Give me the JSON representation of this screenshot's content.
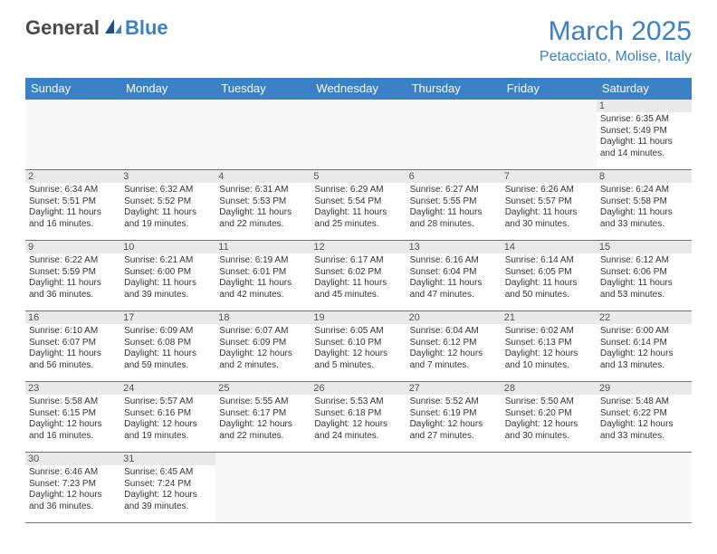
{
  "brand": {
    "part1": "General",
    "part2": "Blue"
  },
  "title": "March 2025",
  "location": "Petacciato, Molise, Italy",
  "colors": {
    "accent": "#3b7fc4",
    "headerText": "#ffffff",
    "bg": "#ffffff",
    "dayStripe": "#e9e9e9"
  },
  "dayHeaders": [
    "Sunday",
    "Monday",
    "Tuesday",
    "Wednesday",
    "Thursday",
    "Friday",
    "Saturday"
  ],
  "weeks": [
    [
      null,
      null,
      null,
      null,
      null,
      null,
      {
        "n": "1",
        "sr": "Sunrise: 6:35 AM",
        "ss": "Sunset: 5:49 PM",
        "dl": "Daylight: 11 hours and 14 minutes."
      }
    ],
    [
      {
        "n": "2",
        "sr": "Sunrise: 6:34 AM",
        "ss": "Sunset: 5:51 PM",
        "dl": "Daylight: 11 hours and 16 minutes."
      },
      {
        "n": "3",
        "sr": "Sunrise: 6:32 AM",
        "ss": "Sunset: 5:52 PM",
        "dl": "Daylight: 11 hours and 19 minutes."
      },
      {
        "n": "4",
        "sr": "Sunrise: 6:31 AM",
        "ss": "Sunset: 5:53 PM",
        "dl": "Daylight: 11 hours and 22 minutes."
      },
      {
        "n": "5",
        "sr": "Sunrise: 6:29 AM",
        "ss": "Sunset: 5:54 PM",
        "dl": "Daylight: 11 hours and 25 minutes."
      },
      {
        "n": "6",
        "sr": "Sunrise: 6:27 AM",
        "ss": "Sunset: 5:55 PM",
        "dl": "Daylight: 11 hours and 28 minutes."
      },
      {
        "n": "7",
        "sr": "Sunrise: 6:26 AM",
        "ss": "Sunset: 5:57 PM",
        "dl": "Daylight: 11 hours and 30 minutes."
      },
      {
        "n": "8",
        "sr": "Sunrise: 6:24 AM",
        "ss": "Sunset: 5:58 PM",
        "dl": "Daylight: 11 hours and 33 minutes."
      }
    ],
    [
      {
        "n": "9",
        "sr": "Sunrise: 6:22 AM",
        "ss": "Sunset: 5:59 PM",
        "dl": "Daylight: 11 hours and 36 minutes."
      },
      {
        "n": "10",
        "sr": "Sunrise: 6:21 AM",
        "ss": "Sunset: 6:00 PM",
        "dl": "Daylight: 11 hours and 39 minutes."
      },
      {
        "n": "11",
        "sr": "Sunrise: 6:19 AM",
        "ss": "Sunset: 6:01 PM",
        "dl": "Daylight: 11 hours and 42 minutes."
      },
      {
        "n": "12",
        "sr": "Sunrise: 6:17 AM",
        "ss": "Sunset: 6:02 PM",
        "dl": "Daylight: 11 hours and 45 minutes."
      },
      {
        "n": "13",
        "sr": "Sunrise: 6:16 AM",
        "ss": "Sunset: 6:04 PM",
        "dl": "Daylight: 11 hours and 47 minutes."
      },
      {
        "n": "14",
        "sr": "Sunrise: 6:14 AM",
        "ss": "Sunset: 6:05 PM",
        "dl": "Daylight: 11 hours and 50 minutes."
      },
      {
        "n": "15",
        "sr": "Sunrise: 6:12 AM",
        "ss": "Sunset: 6:06 PM",
        "dl": "Daylight: 11 hours and 53 minutes."
      }
    ],
    [
      {
        "n": "16",
        "sr": "Sunrise: 6:10 AM",
        "ss": "Sunset: 6:07 PM",
        "dl": "Daylight: 11 hours and 56 minutes."
      },
      {
        "n": "17",
        "sr": "Sunrise: 6:09 AM",
        "ss": "Sunset: 6:08 PM",
        "dl": "Daylight: 11 hours and 59 minutes."
      },
      {
        "n": "18",
        "sr": "Sunrise: 6:07 AM",
        "ss": "Sunset: 6:09 PM",
        "dl": "Daylight: 12 hours and 2 minutes."
      },
      {
        "n": "19",
        "sr": "Sunrise: 6:05 AM",
        "ss": "Sunset: 6:10 PM",
        "dl": "Daylight: 12 hours and 5 minutes."
      },
      {
        "n": "20",
        "sr": "Sunrise: 6:04 AM",
        "ss": "Sunset: 6:12 PM",
        "dl": "Daylight: 12 hours and 7 minutes."
      },
      {
        "n": "21",
        "sr": "Sunrise: 6:02 AM",
        "ss": "Sunset: 6:13 PM",
        "dl": "Daylight: 12 hours and 10 minutes."
      },
      {
        "n": "22",
        "sr": "Sunrise: 6:00 AM",
        "ss": "Sunset: 6:14 PM",
        "dl": "Daylight: 12 hours and 13 minutes."
      }
    ],
    [
      {
        "n": "23",
        "sr": "Sunrise: 5:58 AM",
        "ss": "Sunset: 6:15 PM",
        "dl": "Daylight: 12 hours and 16 minutes."
      },
      {
        "n": "24",
        "sr": "Sunrise: 5:57 AM",
        "ss": "Sunset: 6:16 PM",
        "dl": "Daylight: 12 hours and 19 minutes."
      },
      {
        "n": "25",
        "sr": "Sunrise: 5:55 AM",
        "ss": "Sunset: 6:17 PM",
        "dl": "Daylight: 12 hours and 22 minutes."
      },
      {
        "n": "26",
        "sr": "Sunrise: 5:53 AM",
        "ss": "Sunset: 6:18 PM",
        "dl": "Daylight: 12 hours and 24 minutes."
      },
      {
        "n": "27",
        "sr": "Sunrise: 5:52 AM",
        "ss": "Sunset: 6:19 PM",
        "dl": "Daylight: 12 hours and 27 minutes."
      },
      {
        "n": "28",
        "sr": "Sunrise: 5:50 AM",
        "ss": "Sunset: 6:20 PM",
        "dl": "Daylight: 12 hours and 30 minutes."
      },
      {
        "n": "29",
        "sr": "Sunrise: 5:48 AM",
        "ss": "Sunset: 6:22 PM",
        "dl": "Daylight: 12 hours and 33 minutes."
      }
    ],
    [
      {
        "n": "30",
        "sr": "Sunrise: 6:46 AM",
        "ss": "Sunset: 7:23 PM",
        "dl": "Daylight: 12 hours and 36 minutes."
      },
      {
        "n": "31",
        "sr": "Sunrise: 6:45 AM",
        "ss": "Sunset: 7:24 PM",
        "dl": "Daylight: 12 hours and 39 minutes."
      },
      null,
      null,
      null,
      null,
      null
    ]
  ]
}
